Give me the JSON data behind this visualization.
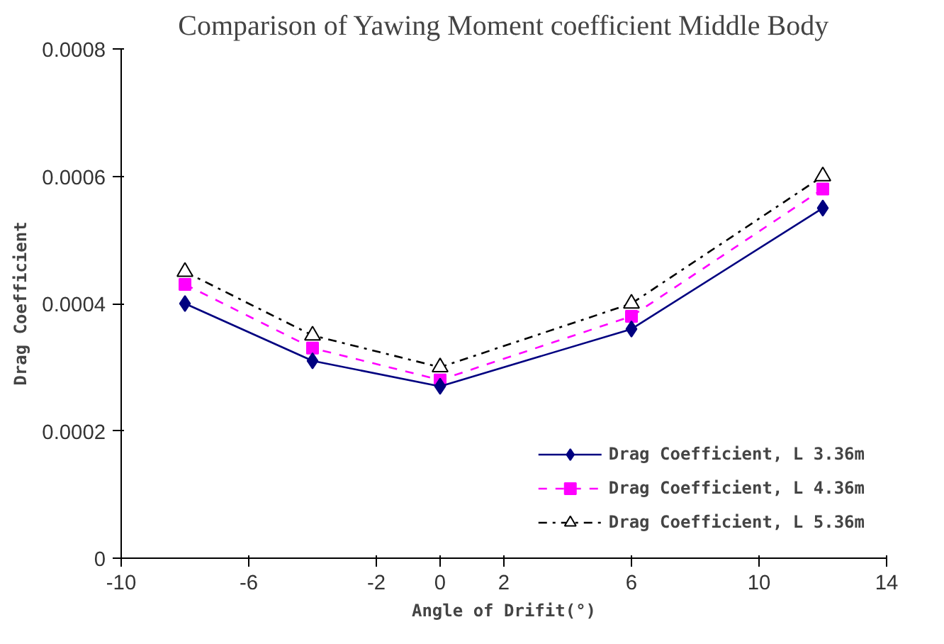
{
  "chart_data": {
    "type": "line",
    "title": "Comparison of Yawing Moment coefficient Middle Body",
    "xlabel": "Angle of Drifit(°)",
    "ylabel": "Drag Coefficient",
    "x": [
      -8,
      -4,
      0,
      6,
      12
    ],
    "series": [
      {
        "name": "Drag Coefficient, L 3.36m",
        "color": "#000080",
        "marker": "diamond",
        "line_style": "solid",
        "values": [
          0.0004,
          0.00031,
          0.00027,
          0.00036,
          0.00055
        ]
      },
      {
        "name": "Drag Coefficient, L 4.36m",
        "color": "#ff00ff",
        "marker": "square",
        "line_style": "dashed",
        "values": [
          0.00043,
          0.00033,
          0.00028,
          0.00038,
          0.00058
        ]
      },
      {
        "name": "Drag Coefficient, L 5.36m",
        "color": "#000000",
        "marker": "triangle",
        "line_style": "dashdot",
        "values": [
          0.00045,
          0.00035,
          0.0003,
          0.0004,
          0.0006
        ]
      }
    ],
    "xlim": [
      -10,
      14
    ],
    "ylim": [
      0,
      0.0008
    ],
    "xticks": [
      -10,
      -6,
      -2,
      0,
      2,
      6,
      10,
      14
    ],
    "yticks": [
      0,
      0.0002,
      0.0004,
      0.0006,
      0.0008
    ],
    "grid": false,
    "legend": "bottom right"
  }
}
